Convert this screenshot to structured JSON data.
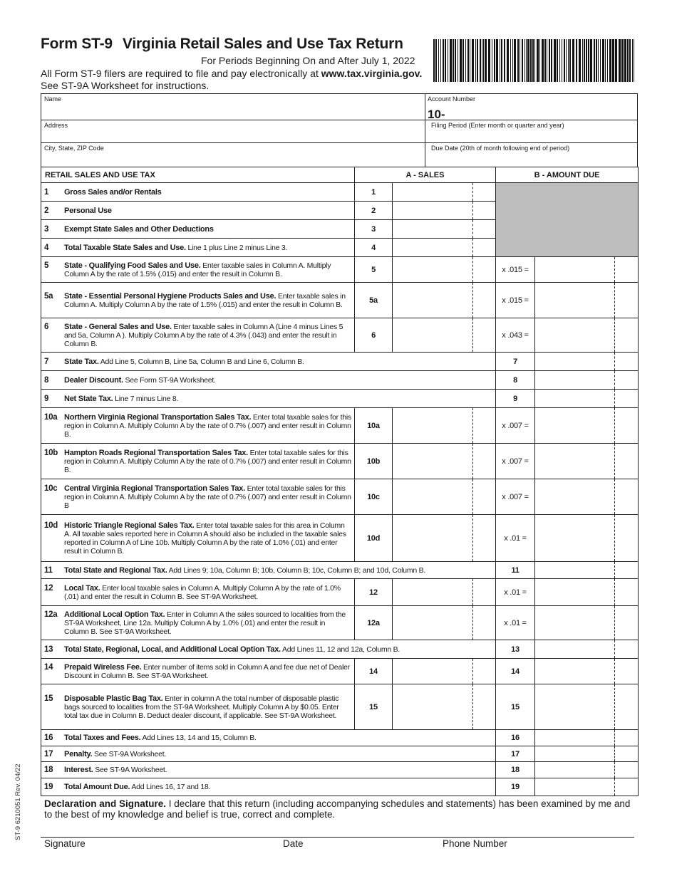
{
  "header": {
    "form_id": "Form ST-9",
    "title": "Virginia Retail Sales and Use Tax Return",
    "subtitle": "For Periods Beginning On and After July 1, 2022",
    "efile_text": "All Form ST-9 filers are required to file and pay electronically at ",
    "efile_url": "www.tax.virginia.gov.",
    "instructions": "See ST-9A Worksheet for instructions."
  },
  "info": {
    "name_label": "Name",
    "address_label": "Address",
    "city_label": "City, State, ZIP Code",
    "account_label": "Account Number",
    "account_prefix": "10-",
    "filing_label": "Filing Period  (Enter month or quarter and year)",
    "due_label": "Due Date (20th of month following end of period)"
  },
  "table": {
    "section_title": "RETAIL SALES AND USE TAX",
    "col_a": "A - SALES",
    "col_b": "B - AMOUNT DUE",
    "rows": [
      {
        "num": "1",
        "title": "Gross Sales and/or Rentals",
        "text": "",
        "a": "1",
        "b": "gray"
      },
      {
        "num": "2",
        "title": "Personal Use",
        "text": "",
        "a": "2",
        "b": "gray"
      },
      {
        "num": "3",
        "title": "Exempt State Sales and Other Deductions",
        "text": "",
        "a": "3",
        "b": "gray"
      },
      {
        "num": "4",
        "title": "Total Taxable State Sales and Use.",
        "text": " Line 1 plus Line 2 minus Line 3.",
        "a": "4",
        "b": "gray"
      },
      {
        "num": "5",
        "title": "State - Qualifying Food Sales and Use.",
        "text": " Enter taxable sales in Column A. Multiply Column A by the rate of 1.5% (.015) and enter the result in Column B.",
        "a": "5",
        "b": "x .015 ="
      },
      {
        "num": "5a",
        "title": "State - Essential Personal Hygiene Products Sales and Use.",
        "text": " Enter taxable sales in Column A. Multiply Column A by the rate of 1.5% (.015) and enter the result in Column B.",
        "a": "5a",
        "b": "x .015 ="
      },
      {
        "num": "6",
        "title": "State - General Sales and Use.",
        "text": " Enter taxable sales in Column A  (Line 4 minus Lines 5 and 5a, Column A ). Multiply Column A by the rate of 4.3% (.043) and enter the result in Column B.",
        "a": "6",
        "b": "x .043 ="
      },
      {
        "num": "7",
        "title": "State Tax.",
        "text": " Add Line 5, Column B, Line 5a, Column B and Line 6, Column B.",
        "a": "",
        "b": "7"
      },
      {
        "num": "8",
        "title": "Dealer Discount.",
        "text": " See Form ST-9A Worksheet.",
        "a": "",
        "b": "8"
      },
      {
        "num": "9",
        "title": "Net State Tax.",
        "text": " Line 7 minus Line 8.",
        "a": "",
        "b": "9"
      },
      {
        "num": "10a",
        "title": "Northern Virginia Regional Transportation Sales Tax.",
        "text": " Enter total taxable sales for this region in Column A. Multiply Column A by the rate of 0.7% (.007) and enter result in Column B.",
        "a": "10a",
        "b": "x .007 ="
      },
      {
        "num": "10b",
        "title": "Hampton Roads Regional Transportation Sales Tax.",
        "text": " Enter total taxable sales for this region in Column A. Multiply Column A by the rate of 0.7% (.007) and enter result in Column B.",
        "a": "10b",
        "b": "x .007 ="
      },
      {
        "num": "10c",
        "title": "Central Virginia Regional Transportation Sales Tax.",
        "text": " Enter total taxable sales for this region in Column A. Multiply Column A by the rate of 0.7% (.007) and enter result in Column B",
        "a": "10c",
        "b": "x .007 ="
      },
      {
        "num": "10d",
        "title": "Historic Triangle Regional Sales Tax.",
        "text": " Enter total taxable sales for this area in Column A. All taxable sales reported here in Column A should also be included in the taxable sales reported in Column A of Line 10b. Multiply Column A by the rate of 1.0% (.01) and enter result in Column B.",
        "a": "10d",
        "b": "x .01 ="
      },
      {
        "num": "11",
        "title": "Total State and Regional Tax.",
        "text": " Add Lines 9; 10a, Column B; 10b, Column B; 10c, Column B; and 10d, Column B.",
        "a": "",
        "b": "11"
      },
      {
        "num": "12",
        "title": "Local Tax.",
        "text": " Enter local taxable sales in Column A.  Multiply Column A by the rate of 1.0% (.01) and enter the result in Column B.  See ST-9A Worksheet.",
        "a": "12",
        "b": "x .01 ="
      },
      {
        "num": "12a",
        "title": "Additional Local Option Tax.",
        "text": " Enter in Column A the sales sourced to localities from the ST-9A Worksheet, Line 12a. Multiply Column A by 1.0% (.01) and enter the result in Column B. See ST-9A Worksheet.",
        "a": "12a",
        "b": "x .01 ="
      },
      {
        "num": "13",
        "title": "Total State, Regional, Local, and Additional Local Option Tax.",
        "text": " Add Lines 11, 12 and 12a, Column B.",
        "a": "",
        "b": "13"
      },
      {
        "num": "14",
        "title": "Prepaid Wireless Fee.",
        "text": " Enter number of items sold in Column A and fee due net of Dealer Discount in Column B. See ST-9A Worksheet.",
        "a": "14",
        "b": "14"
      },
      {
        "num": "15",
        "title": "Disposable Plastic Bag Tax.",
        "text": " Enter in column A the total number of disposable plastic bags sourced to localities from the ST-9A Worksheet. Multiply Column A by $0.05. Enter total tax due in Column B. Deduct dealer discount, if applicable. See ST-9A Worksheet.",
        "a": "15",
        "b": "15"
      },
      {
        "num": "16",
        "title": "Total Taxes and Fees.",
        "text": " Add Lines 13, 14 and 15, Column B.",
        "a": "",
        "b": "16"
      },
      {
        "num": "17",
        "title": "Penalty.",
        "text": " See ST-9A Worksheet.",
        "a": "",
        "b": "17"
      },
      {
        "num": "18",
        "title": "Interest.",
        "text": " See ST-9A Worksheet.",
        "a": "",
        "b": "18"
      },
      {
        "num": "19",
        "title": "Total Amount Due.",
        "text": " Add Lines 16, 17 and 18.",
        "a": "",
        "b": "19"
      }
    ]
  },
  "declaration": {
    "title": "Declaration and Signature.",
    "text": " I declare that this return (including accompanying schedules and statements) has been examined by me and to the best of my knowledge and belief is true, correct and complete.",
    "signature_label": "Signature",
    "date_label": "Date",
    "phone_label": "Phone Number"
  },
  "footer": {
    "form_code": "ST-9  6210051    Rev. 04/22"
  },
  "colors": {
    "shaded": "#bdbdbd",
    "line": "#222222"
  }
}
